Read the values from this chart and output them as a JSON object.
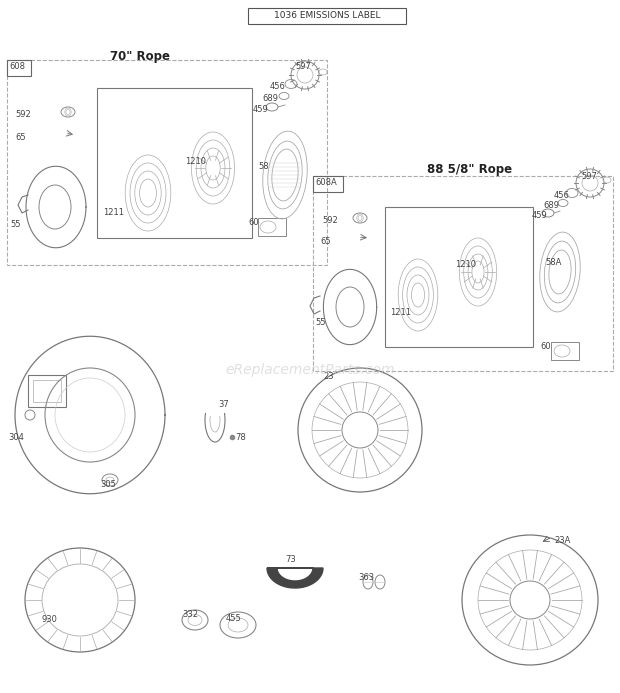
{
  "title": "1036 EMISSIONS LABEL",
  "section1_title": "70\" Rope",
  "section1_id": "608",
  "section2_title": "88 5/8\" Rope",
  "section2_id": "608A",
  "bg_color": "#ffffff",
  "watermark": "eReplacementParts.com"
}
